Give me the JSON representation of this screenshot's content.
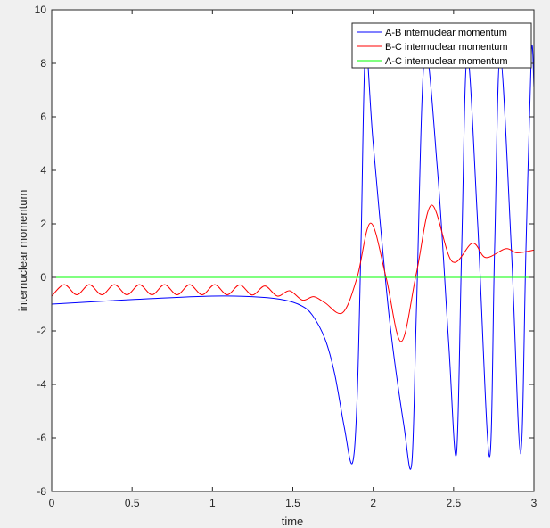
{
  "chart_data": {
    "type": "line",
    "title": "",
    "xlabel": "time",
    "ylabel": "internuclear momentum",
    "xlim": [
      0,
      3
    ],
    "ylim": [
      -8,
      10
    ],
    "xticks": [
      0,
      0.5,
      1,
      1.5,
      2,
      2.5,
      3
    ],
    "xtick_labels": [
      "0",
      "0.5",
      "1",
      "1.5",
      "2",
      "2.5",
      "3"
    ],
    "yticks": [
      -8,
      -6,
      -4,
      -2,
      0,
      2,
      4,
      6,
      8,
      10
    ],
    "ytick_labels": [
      "-8",
      "-6",
      "-4",
      "-2",
      "0",
      "2",
      "4",
      "6",
      "8",
      "10"
    ],
    "grid": false,
    "legend_position": "top-right",
    "series": [
      {
        "name": "A-B internuclear momentum",
        "color": "#0000ff",
        "points": [
          [
            0,
            -1
          ],
          [
            0.5,
            -0.83
          ],
          [
            1,
            -0.7
          ],
          [
            1.3,
            -0.74
          ],
          [
            1.45,
            -0.85
          ],
          [
            1.55,
            -1.05
          ],
          [
            1.62,
            -1.4
          ],
          [
            1.7,
            -2.3
          ],
          [
            1.76,
            -3.6
          ],
          [
            1.82,
            -5.6
          ],
          [
            1.87,
            -6.95
          ],
          [
            1.9,
            -4.5
          ],
          [
            1.925,
            1.5
          ],
          [
            1.952,
            8.5
          ],
          [
            2.0,
            5
          ],
          [
            2.1,
            -1.5
          ],
          [
            2.19,
            -5.5
          ],
          [
            2.24,
            -6.95
          ],
          [
            2.27,
            -1
          ],
          [
            2.32,
            8.3
          ],
          [
            2.4,
            4
          ],
          [
            2.47,
            -2.5
          ],
          [
            2.518,
            -6.6
          ],
          [
            2.55,
            1
          ],
          [
            2.585,
            8.3
          ],
          [
            2.65,
            2
          ],
          [
            2.723,
            -6.7
          ],
          [
            2.755,
            1
          ],
          [
            2.79,
            8.3
          ],
          [
            2.86,
            1
          ],
          [
            2.917,
            -6.6
          ],
          [
            2.95,
            1
          ],
          [
            2.984,
            8.4
          ],
          [
            3,
            7.1
          ]
        ]
      },
      {
        "name": "B-C internuclear momentum",
        "color": "#ff0000",
        "points": [
          [
            0,
            -0.7
          ],
          [
            0.078,
            -0.27
          ],
          [
            0.156,
            -0.65
          ],
          [
            0.234,
            -0.27
          ],
          [
            0.312,
            -0.65
          ],
          [
            0.39,
            -0.27
          ],
          [
            0.468,
            -0.65
          ],
          [
            0.546,
            -0.27
          ],
          [
            0.624,
            -0.65
          ],
          [
            0.702,
            -0.27
          ],
          [
            0.78,
            -0.65
          ],
          [
            0.858,
            -0.27
          ],
          [
            0.936,
            -0.65
          ],
          [
            1.014,
            -0.27
          ],
          [
            1.092,
            -0.65
          ],
          [
            1.17,
            -0.28
          ],
          [
            1.248,
            -0.66
          ],
          [
            1.326,
            -0.32
          ],
          [
            1.404,
            -0.7
          ],
          [
            1.48,
            -0.5
          ],
          [
            1.56,
            -0.85
          ],
          [
            1.63,
            -0.72
          ],
          [
            1.7,
            -0.95
          ],
          [
            1.81,
            -1.32
          ],
          [
            1.9,
            0
          ],
          [
            1.984,
            2.03
          ],
          [
            2.08,
            0
          ],
          [
            2.174,
            -2.4
          ],
          [
            2.27,
            0.2
          ],
          [
            2.363,
            2.7
          ],
          [
            2.49,
            0.6
          ],
          [
            2.618,
            1.28
          ],
          [
            2.7,
            0.74
          ],
          [
            2.823,
            1.07
          ],
          [
            2.895,
            0.92
          ],
          [
            3,
            1.02
          ]
        ]
      },
      {
        "name": "A-C internuclear momentum",
        "color": "#00ff00",
        "points": [
          [
            0,
            0
          ],
          [
            3,
            0
          ]
        ]
      }
    ]
  }
}
